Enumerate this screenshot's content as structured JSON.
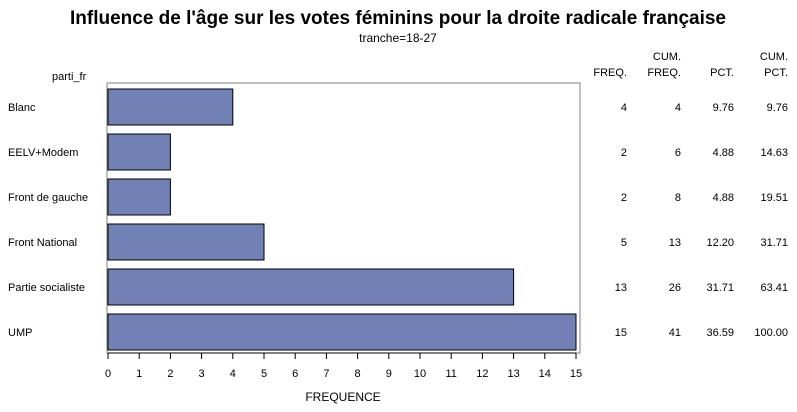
{
  "chart_data": {
    "type": "bar",
    "orientation": "horizontal",
    "title": "Influence de l'âge sur les votes féminins pour la droite radicale française",
    "subtitle": "tranche=18-27",
    "category_axis_label": "parti_fr",
    "xlabel": "FREQUENCE",
    "xlim": [
      0,
      15
    ],
    "xticks": [
      0,
      1,
      2,
      3,
      4,
      5,
      6,
      7,
      8,
      9,
      10,
      11,
      12,
      13,
      14,
      15
    ],
    "bar_color": "#7180b5",
    "categories": [
      "Blanc",
      "EELV+Modem",
      "Front de gauche",
      "Front National",
      "Partie socialiste",
      "UMP"
    ],
    "values": [
      4,
      2,
      2,
      5,
      13,
      15
    ],
    "table": {
      "headers": [
        {
          "line1": "",
          "line2": "FREQ."
        },
        {
          "line1": "CUM.",
          "line2": "FREQ."
        },
        {
          "line1": "",
          "line2": "PCT."
        },
        {
          "line1": "CUM.",
          "line2": "PCT."
        }
      ],
      "rows": [
        [
          "4",
          "4",
          "9.76",
          "9.76"
        ],
        [
          "2",
          "6",
          "4.88",
          "14.63"
        ],
        [
          "2",
          "8",
          "4.88",
          "19.51"
        ],
        [
          "5",
          "13",
          "12.20",
          "31.71"
        ],
        [
          "13",
          "26",
          "31.71",
          "63.41"
        ],
        [
          "15",
          "41",
          "36.59",
          "100.00"
        ]
      ]
    }
  }
}
